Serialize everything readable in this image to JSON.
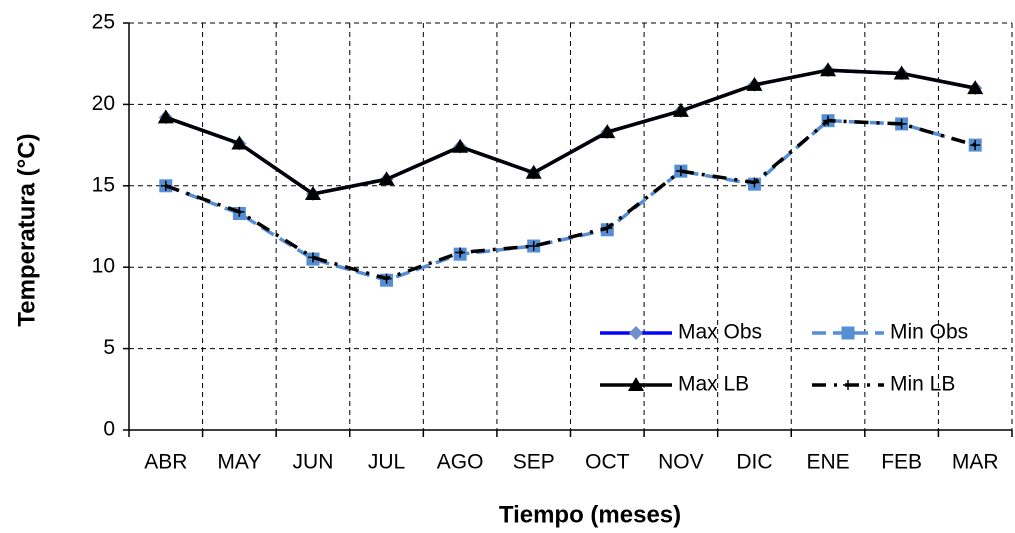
{
  "chart_data": {
    "type": "line",
    "x_label": "Tiempo (meses)",
    "y_label": "Temperatura (°C)",
    "categories": [
      "ABR",
      "MAY",
      "JUN",
      "JUL",
      "AGO",
      "SEP",
      "OCT",
      "NOV",
      "DIC",
      "ENE",
      "FEB",
      "MAR"
    ],
    "series": [
      {
        "name": "Max Obs",
        "color": "#0000ff",
        "marker": "diamond",
        "marker_color": "#6f8fc8",
        "dash": "solid",
        "values": [
          19.2,
          17.6,
          14.5,
          15.4,
          17.4,
          15.8,
          18.3,
          19.6,
          21.2,
          22.1,
          21.9,
          21.0
        ]
      },
      {
        "name": "Min Obs",
        "color": "#558ed5",
        "marker": "square",
        "marker_color": "#558ed5",
        "dash": "dashed",
        "values": [
          15.0,
          13.3,
          10.5,
          9.2,
          10.8,
          11.3,
          12.3,
          15.9,
          15.1,
          19.0,
          18.8,
          17.5
        ]
      },
      {
        "name": "Max LB",
        "color": "#000000",
        "marker": "triangle",
        "marker_color": "#000000",
        "dash": "solid",
        "values": [
          19.2,
          17.6,
          14.5,
          15.4,
          17.4,
          15.8,
          18.3,
          19.6,
          21.2,
          22.1,
          21.9,
          21.0
        ]
      },
      {
        "name": "Min LB",
        "color": "#000000",
        "marker": "plus",
        "marker_color": "#000000",
        "dash": "dashdot",
        "values": [
          15.0,
          13.4,
          10.6,
          9.3,
          10.9,
          11.3,
          12.4,
          15.9,
          15.2,
          19.0,
          18.8,
          17.5
        ]
      }
    ],
    "ylim": [
      0,
      25
    ],
    "yticks": [
      0,
      5,
      10,
      15,
      20,
      25
    ],
    "grid": true,
    "legend": "lower right"
  }
}
